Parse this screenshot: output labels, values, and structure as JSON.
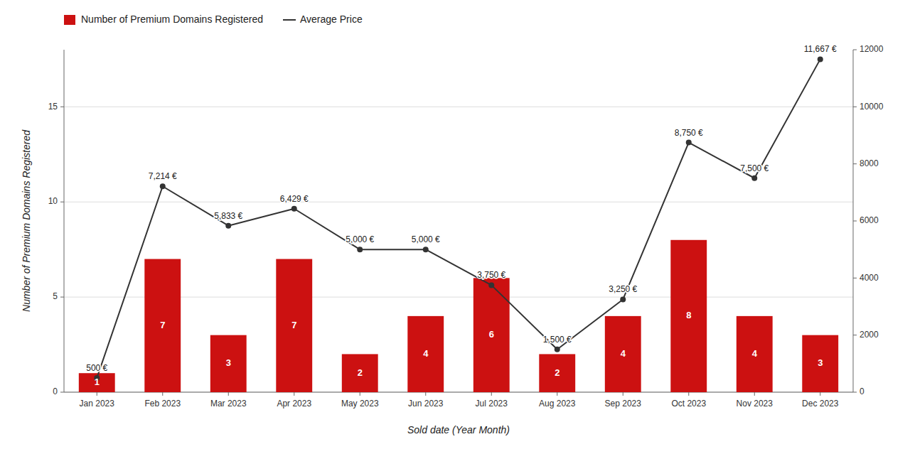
{
  "chart_data": {
    "type": "bar",
    "x_label": "Sold date (Year Month)",
    "y_label": "Number of Premium Domains Registered",
    "categories": [
      "Jan 2023",
      "Feb 2023",
      "Mar 2023",
      "Apr 2023",
      "May 2023",
      "Jun 2023",
      "Jul 2023",
      "Aug 2023",
      "Sep 2023",
      "Oct 2023",
      "Nov 2023",
      "Dec 2023"
    ],
    "series": [
      {
        "name": "Number of Premium Domains Registered",
        "type": "bar",
        "color": "#CC1111",
        "values": [
          1,
          7,
          3,
          7,
          2,
          4,
          6,
          2,
          4,
          8,
          4,
          3
        ],
        "data_labels": true
      },
      {
        "name": "Average Price",
        "type": "line",
        "axis": "y2",
        "color": "#333333",
        "marker": "circle",
        "values": [
          500,
          7214,
          5833,
          6429,
          5000,
          5000,
          3750,
          1500,
          3250,
          8750,
          7500,
          11667
        ],
        "value_labels": [
          "500 €",
          "7,214 €",
          "5,833 €",
          "6,429 €",
          "5,000 €",
          "5,000 €",
          "3,750 €",
          "1,500 €",
          "3,250 €",
          "8,750 €",
          "7,500 €",
          "11,667 €"
        ],
        "data_labels": true
      }
    ],
    "ylim": [
      0,
      18
    ],
    "yticks": [
      0,
      5,
      10,
      15
    ],
    "y2lim": [
      0,
      12000
    ],
    "y2ticks": [
      0,
      2000,
      4000,
      6000,
      8000,
      10000,
      12000
    ],
    "grid": true,
    "legend": "top-left"
  }
}
